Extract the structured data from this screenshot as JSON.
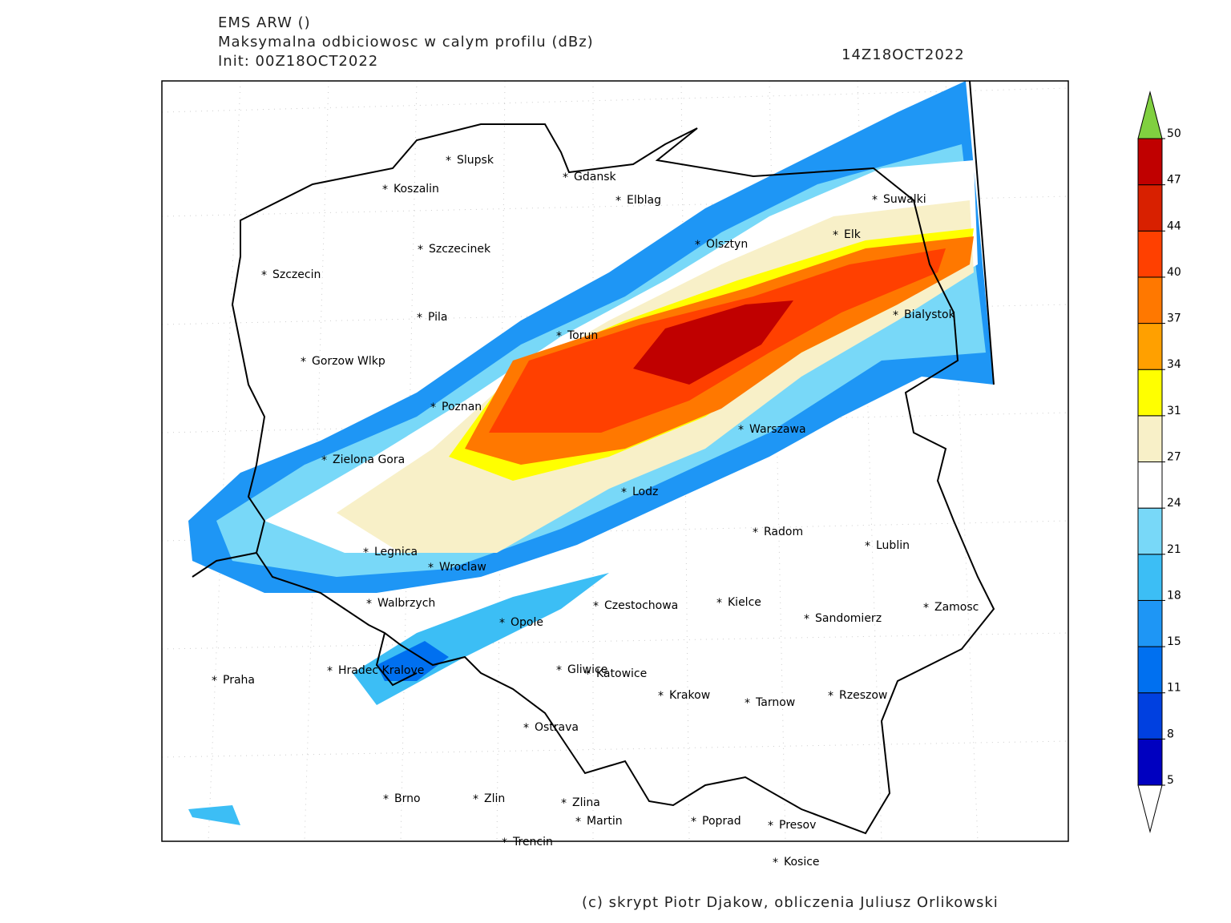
{
  "header": {
    "model": "EMS ARW ()",
    "title": "Maksymalna odbiciowosc w calym profilu (dBz)",
    "init": "Init: 00Z18OCT2022",
    "valid_time": "14Z18OCT2022"
  },
  "cities": [
    {
      "name": "Slupsk"
    },
    {
      "name": "Koszalin"
    },
    {
      "name": "Gdansk"
    },
    {
      "name": "Elblag"
    },
    {
      "name": "Suwalki"
    },
    {
      "name": "Szczecinek"
    },
    {
      "name": "Olsztyn"
    },
    {
      "name": "Elk"
    },
    {
      "name": "Szczecin"
    },
    {
      "name": "Pila"
    },
    {
      "name": "Torun"
    },
    {
      "name": "Bialystok"
    },
    {
      "name": "Gorzow Wlkp"
    },
    {
      "name": "Poznan"
    },
    {
      "name": "Warszawa"
    },
    {
      "name": "Zielona Gora"
    },
    {
      "name": "Lodz"
    },
    {
      "name": "Radom"
    },
    {
      "name": "Lublin"
    },
    {
      "name": "Legnica"
    },
    {
      "name": "Wroclaw"
    },
    {
      "name": "Walbrzych"
    },
    {
      "name": "Czestochowa"
    },
    {
      "name": "Kielce"
    },
    {
      "name": "Zamosc"
    },
    {
      "name": "Opole"
    },
    {
      "name": "Sandomierz"
    },
    {
      "name": "Hradec Kralove"
    },
    {
      "name": "Gliwice"
    },
    {
      "name": "Katowice"
    },
    {
      "name": "Praha"
    },
    {
      "name": "Krakow"
    },
    {
      "name": "Tarnow"
    },
    {
      "name": "Rzeszow"
    },
    {
      "name": "Ostrava"
    },
    {
      "name": "Brno"
    },
    {
      "name": "Zlin"
    },
    {
      "name": "Zlina"
    },
    {
      "name": "Martin"
    },
    {
      "name": "Poprad"
    },
    {
      "name": "Presov"
    },
    {
      "name": "Trencin"
    },
    {
      "name": "Kosice"
    }
  ],
  "colorbar": {
    "levels": [
      5,
      8,
      11,
      15,
      18,
      21,
      24,
      27,
      31,
      34,
      37,
      40,
      44,
      47,
      50
    ],
    "colors": [
      "#0000c0",
      "#0040e0",
      "#0070f0",
      "#1e96f5",
      "#3cbef5",
      "#78d8f8",
      "#ffffff",
      "#f8f0c8",
      "#ffff00",
      "#ffa000",
      "#ff7800",
      "#ff4000",
      "#d82000",
      "#c00000"
    ],
    "over_color": "#80d040",
    "under_color": "#ffffff"
  },
  "footer": "(c) skrypt Piotr Djakow, obliczenia Juliusz Orlikowski"
}
